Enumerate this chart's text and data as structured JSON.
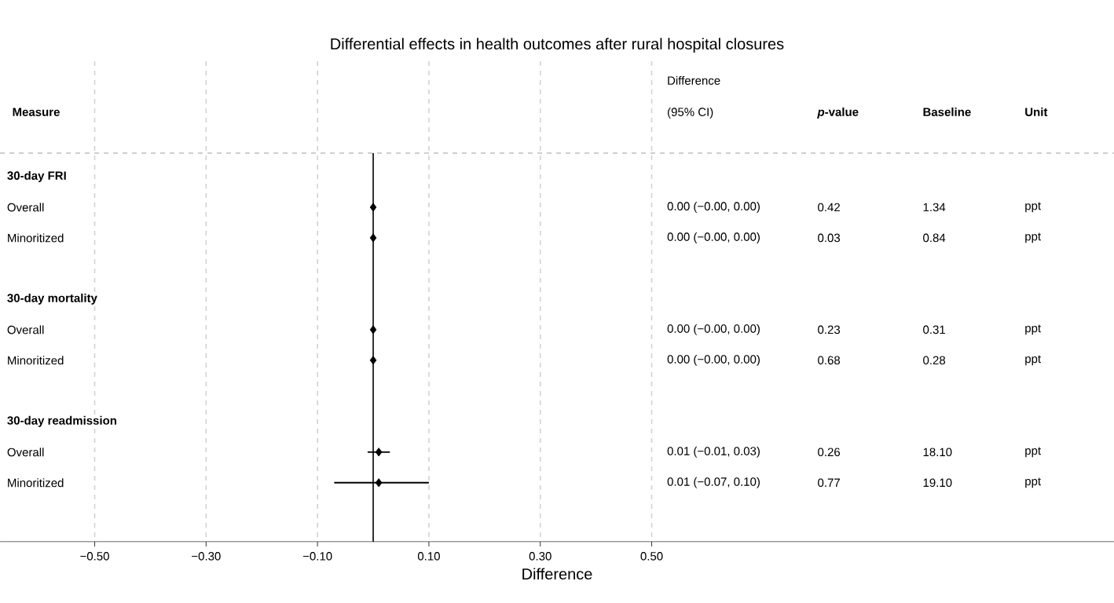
{
  "chart_data": {
    "type": "scatter",
    "orientation": "horizontal",
    "title": "Differential effects in health outcomes after rural hospital closures",
    "xlabel": "Difference",
    "ylabel": "Measure",
    "categories": [
      "30-day FRI",
      "Overall",
      "Minoritized",
      "30-day mortality",
      "Overall",
      "Minoritized",
      "30-day readmission",
      "Overall",
      "Minoritized"
    ],
    "values": [
      null,
      0.0,
      0.0,
      null,
      0.0,
      0.0,
      null,
      0.01,
      0.01
    ],
    "errors": [
      null,
      null,
      null,
      null,
      null,
      null,
      null,
      [
        -0.01,
        0.03
      ],
      [
        -0.07,
        0.1
      ]
    ],
    "xlim": [
      -0.67,
      1.33
    ],
    "xticks": [
      {
        "value": -0.5,
        "label": "−0.50"
      },
      {
        "value": -0.3,
        "label": "−0.30"
      },
      {
        "value": -0.1,
        "label": "−0.10"
      },
      {
        "value": 0.1,
        "label": "0.10"
      },
      {
        "value": 0.3,
        "label": "0.30"
      },
      {
        "value": 0.5,
        "label": "0.50"
      }
    ],
    "grid": "x",
    "marker": "diamond",
    "color": "#000000",
    "ref_lines": [
      {
        "axis": "x",
        "value": 0,
        "color": "#000000"
      }
    ],
    "annotations": [
      "Difference (95% CI)",
      "*p*-value",
      "Baseline",
      "Unit",
      "0.00 (−0.00, 0.00)",
      "0.42",
      "1.34",
      "ppt",
      "0.00 (−0.00, 0.00)",
      "0.03",
      "0.84",
      "ppt",
      "0.00 (−0.00, 0.00)",
      "0.23",
      "0.31",
      "ppt",
      "0.00 (−0.00, 0.00)",
      "0.68",
      "0.28",
      "ppt",
      "0.01 (−0.01, 0.03)",
      "0.26",
      "18.10",
      "ppt",
      "0.01 (−0.07, 0.10)",
      "0.77",
      "19.10",
      "ppt"
    ]
  }
}
